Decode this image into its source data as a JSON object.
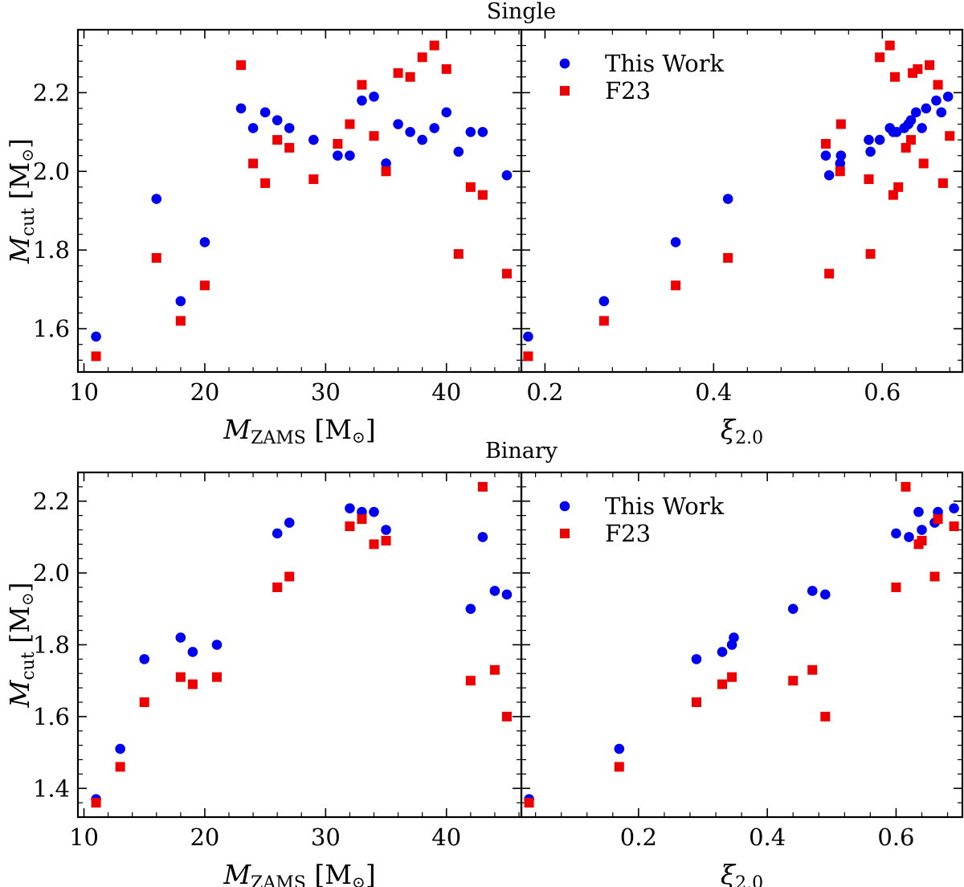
{
  "colors": {
    "this_work": "#0000ee",
    "f23": "#ee0000",
    "axis": "#000000"
  },
  "chart_data": [
    {
      "type": "scatter",
      "row_title": "Single",
      "xlabel": {
        "main": "M",
        "sub": "ZAMS",
        "unit": "[M",
        "unit_sub": "⊙",
        "close": "]"
      },
      "ylabel": {
        "main": "M",
        "sub": "cut",
        "unit": "[M",
        "unit_sub": "⊙",
        "close": "]"
      },
      "xlim": [
        9.5,
        46.2
      ],
      "ylim": [
        1.49,
        2.36
      ],
      "xticks": [
        10,
        20,
        30,
        40
      ],
      "yticks": [
        1.6,
        1.8,
        2.0,
        2.2
      ],
      "xtick_labels": [
        "10",
        "20",
        "30",
        "40"
      ],
      "ytick_labels": [
        "1.6",
        "1.8",
        "2.0",
        "2.2"
      ],
      "series": [
        {
          "name": "This Work",
          "marker": "circle",
          "points": [
            [
              11,
              1.58
            ],
            [
              16,
              1.93
            ],
            [
              18,
              1.67
            ],
            [
              20,
              1.82
            ],
            [
              23,
              2.16
            ],
            [
              24,
              2.11
            ],
            [
              25,
              2.15
            ],
            [
              26,
              2.13
            ],
            [
              27,
              2.11
            ],
            [
              29,
              2.08
            ],
            [
              31,
              2.04
            ],
            [
              32,
              2.04
            ],
            [
              33,
              2.18
            ],
            [
              34,
              2.19
            ],
            [
              35,
              2.02
            ],
            [
              36,
              2.12
            ],
            [
              37,
              2.1
            ],
            [
              38,
              2.08
            ],
            [
              39,
              2.11
            ],
            [
              40,
              2.15
            ],
            [
              41,
              2.05
            ],
            [
              42,
              2.1
            ],
            [
              43,
              2.1
            ],
            [
              45,
              1.99
            ]
          ]
        },
        {
          "name": "F23",
          "marker": "square",
          "points": [
            [
              11,
              1.53
            ],
            [
              16,
              1.78
            ],
            [
              18,
              1.62
            ],
            [
              20,
              1.71
            ],
            [
              23,
              2.27
            ],
            [
              24,
              2.02
            ],
            [
              25,
              1.97
            ],
            [
              26,
              2.08
            ],
            [
              27,
              2.06
            ],
            [
              29,
              1.98
            ],
            [
              31,
              2.07
            ],
            [
              32,
              2.12
            ],
            [
              33,
              2.22
            ],
            [
              34,
              2.09
            ],
            [
              35,
              2.0
            ],
            [
              36,
              2.25
            ],
            [
              37,
              2.24
            ],
            [
              38,
              2.29
            ],
            [
              39,
              2.32
            ],
            [
              40,
              2.26
            ],
            [
              41,
              1.79
            ],
            [
              42,
              1.96
            ],
            [
              43,
              1.94
            ],
            [
              45,
              1.74
            ]
          ]
        }
      ]
    },
    {
      "type": "scatter",
      "xlabel": {
        "main": "ξ",
        "sub": "2.0"
      },
      "legend": {
        "position": "top-left",
        "entries": [
          "This Work",
          "F23"
        ]
      },
      "xlim": [
        0.172,
        0.695
      ],
      "ylim": [
        1.49,
        2.36
      ],
      "xticks": [
        0.2,
        0.4,
        0.6
      ],
      "yticks": [
        1.6,
        1.8,
        2.0,
        2.2
      ],
      "xtick_labels": [
        "0.2",
        "0.4",
        "0.6"
      ],
      "ytick_labels": [],
      "series": [
        {
          "name": "This Work",
          "marker": "circle",
          "points": [
            [
              0.18,
              1.58
            ],
            [
              0.27,
              1.67
            ],
            [
              0.355,
              1.82
            ],
            [
              0.417,
              1.93
            ],
            [
              0.533,
              2.04
            ],
            [
              0.537,
              1.99
            ],
            [
              0.55,
              2.02
            ],
            [
              0.551,
              2.04
            ],
            [
              0.584,
              2.08
            ],
            [
              0.586,
              2.05
            ],
            [
              0.597,
              2.08
            ],
            [
              0.609,
              2.11
            ],
            [
              0.613,
              2.1
            ],
            [
              0.617,
              2.1
            ],
            [
              0.626,
              2.11
            ],
            [
              0.631,
              2.12
            ],
            [
              0.634,
              2.13
            ],
            [
              0.64,
              2.15
            ],
            [
              0.647,
              2.11
            ],
            [
              0.652,
              2.16
            ],
            [
              0.664,
              2.18
            ],
            [
              0.67,
              2.15
            ],
            [
              0.678,
              2.19
            ]
          ]
        },
        {
          "name": "F23",
          "marker": "square",
          "points": [
            [
              0.18,
              1.53
            ],
            [
              0.27,
              1.62
            ],
            [
              0.355,
              1.71
            ],
            [
              0.417,
              1.78
            ],
            [
              0.533,
              2.07
            ],
            [
              0.537,
              1.74
            ],
            [
              0.55,
              2.0
            ],
            [
              0.551,
              2.12
            ],
            [
              0.584,
              1.98
            ],
            [
              0.586,
              1.79
            ],
            [
              0.597,
              2.29
            ],
            [
              0.609,
              2.32
            ],
            [
              0.613,
              1.94
            ],
            [
              0.615,
              2.24
            ],
            [
              0.619,
              1.96
            ],
            [
              0.628,
              2.06
            ],
            [
              0.634,
              2.08
            ],
            [
              0.636,
              2.25
            ],
            [
              0.642,
              2.26
            ],
            [
              0.649,
              2.02
            ],
            [
              0.656,
              2.27
            ],
            [
              0.666,
              2.22
            ],
            [
              0.672,
              1.97
            ],
            [
              0.68,
              2.09
            ]
          ]
        }
      ]
    },
    {
      "type": "scatter",
      "row_title": "Binary",
      "xlabel": {
        "main": "M",
        "sub": "ZAMS",
        "unit": "[M",
        "unit_sub": "⊙",
        "close": "]"
      },
      "ylabel": {
        "main": "M",
        "sub": "cut",
        "unit": "[M",
        "unit_sub": "⊙",
        "close": "]"
      },
      "xlim": [
        9.5,
        46.2
      ],
      "ylim": [
        1.32,
        2.28
      ],
      "xticks": [
        10,
        20,
        30,
        40
      ],
      "yticks": [
        1.4,
        1.6,
        1.8,
        2.0,
        2.2
      ],
      "xtick_labels": [
        "10",
        "20",
        "30",
        "40"
      ],
      "ytick_labels": [
        "1.4",
        "1.6",
        "1.8",
        "2.0",
        "2.2"
      ],
      "series": [
        {
          "name": "This Work",
          "marker": "circle",
          "points": [
            [
              11,
              1.37
            ],
            [
              13,
              1.51
            ],
            [
              15,
              1.76
            ],
            [
              18,
              1.82
            ],
            [
              19,
              1.78
            ],
            [
              21,
              1.8
            ],
            [
              26,
              2.11
            ],
            [
              27,
              2.14
            ],
            [
              32,
              2.18
            ],
            [
              33,
              2.17
            ],
            [
              34,
              2.17
            ],
            [
              35,
              2.12
            ],
            [
              42,
              1.9
            ],
            [
              43,
              2.1
            ],
            [
              44,
              1.95
            ],
            [
              45,
              1.94
            ]
          ]
        },
        {
          "name": "F23",
          "marker": "square",
          "points": [
            [
              11,
              1.36
            ],
            [
              13,
              1.46
            ],
            [
              15,
              1.64
            ],
            [
              18,
              1.71
            ],
            [
              19,
              1.69
            ],
            [
              21,
              1.71
            ],
            [
              26,
              1.96
            ],
            [
              27,
              1.99
            ],
            [
              32,
              2.13
            ],
            [
              33,
              2.15
            ],
            [
              34,
              2.08
            ],
            [
              35,
              2.09
            ],
            [
              42,
              1.7
            ],
            [
              43,
              2.24
            ],
            [
              44,
              1.73
            ],
            [
              45,
              1.6
            ]
          ]
        }
      ]
    },
    {
      "type": "scatter",
      "xlabel": {
        "main": "ξ",
        "sub": "2.0"
      },
      "legend": {
        "position": "top-left",
        "entries": [
          "This Work",
          "F23"
        ]
      },
      "xlim": [
        0.018,
        0.703
      ],
      "ylim": [
        1.32,
        2.28
      ],
      "xticks": [
        0.2,
        0.4,
        0.6
      ],
      "yticks": [
        1.4,
        1.6,
        1.8,
        2.0,
        2.2
      ],
      "xtick_labels": [
        "0.2",
        "0.4",
        "0.6"
      ],
      "ytick_labels": [],
      "series": [
        {
          "name": "This Work",
          "marker": "circle",
          "points": [
            [
              0.03,
              1.37
            ],
            [
              0.17,
              1.51
            ],
            [
              0.29,
              1.76
            ],
            [
              0.33,
              1.78
            ],
            [
              0.345,
              1.8
            ],
            [
              0.348,
              1.82
            ],
            [
              0.44,
              1.9
            ],
            [
              0.47,
              1.95
            ],
            [
              0.49,
              1.94
            ],
            [
              0.6,
              2.11
            ],
            [
              0.62,
              2.1
            ],
            [
              0.635,
              2.17
            ],
            [
              0.64,
              2.12
            ],
            [
              0.66,
              2.14
            ],
            [
              0.665,
              2.17
            ],
            [
              0.69,
              2.18
            ]
          ]
        },
        {
          "name": "F23",
          "marker": "square",
          "points": [
            [
              0.03,
              1.36
            ],
            [
              0.17,
              1.46
            ],
            [
              0.29,
              1.64
            ],
            [
              0.33,
              1.69
            ],
            [
              0.345,
              1.71
            ],
            [
              0.44,
              1.7
            ],
            [
              0.47,
              1.73
            ],
            [
              0.49,
              1.6
            ],
            [
              0.6,
              1.96
            ],
            [
              0.615,
              2.24
            ],
            [
              0.635,
              2.08
            ],
            [
              0.64,
              2.09
            ],
            [
              0.66,
              1.99
            ],
            [
              0.665,
              2.15
            ],
            [
              0.69,
              2.13
            ]
          ]
        }
      ]
    }
  ]
}
